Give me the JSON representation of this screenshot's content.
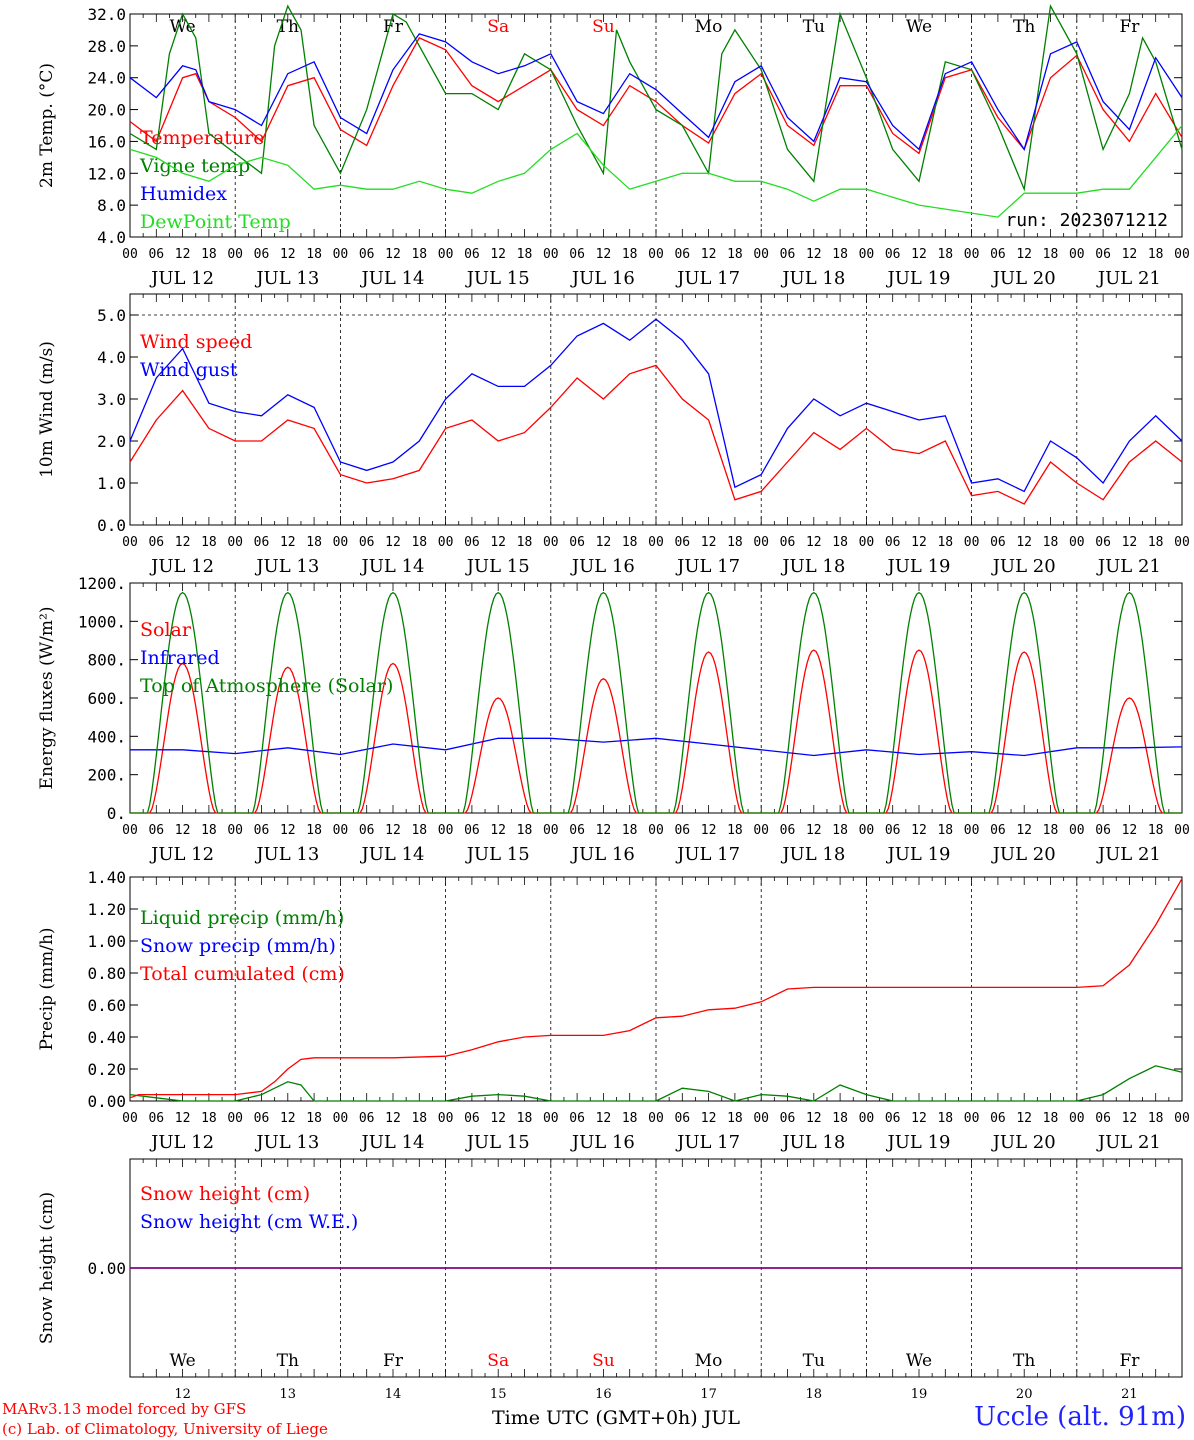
{
  "footer": {
    "credit_line1": "MARv3.13 model forced by GFS",
    "credit_line2": "(c) Lab. of Climatology, University of Liege",
    "station": "Uccle (alt. 91m)",
    "x_axis_title": "Time UTC (GMT+0h) JUL"
  },
  "run_label": "run: 2023071212",
  "days": [
    {
      "date": "JUL 12",
      "num": "12",
      "dow": "We",
      "weekend": false
    },
    {
      "date": "JUL 13",
      "num": "13",
      "dow": "Th",
      "weekend": false
    },
    {
      "date": "JUL 14",
      "num": "14",
      "dow": "Fr",
      "weekend": false
    },
    {
      "date": "JUL 15",
      "num": "15",
      "dow": "Sa",
      "weekend": true
    },
    {
      "date": "JUL 16",
      "num": "16",
      "dow": "Su",
      "weekend": true
    },
    {
      "date": "JUL 17",
      "num": "17",
      "dow": "Mo",
      "weekend": false
    },
    {
      "date": "JUL 18",
      "num": "18",
      "dow": "Tu",
      "weekend": false
    },
    {
      "date": "JUL 19",
      "num": "19",
      "dow": "We",
      "weekend": false
    },
    {
      "date": "JUL 20",
      "num": "20",
      "dow": "Th",
      "weekend": false
    },
    {
      "date": "JUL 21",
      "num": "21",
      "dow": "Fr",
      "weekend": false
    }
  ],
  "hour_labels": [
    "00",
    "06",
    "12",
    "18"
  ],
  "last_hour_label": "00",
  "colors": {
    "red": "#ff0000",
    "blue": "#0000ff",
    "green": "#008000",
    "lightgreen": "#22dd22",
    "purple": "#800080"
  },
  "chart_data": [
    {
      "type": "line",
      "id": "temp",
      "ylabel": "2m Temp. (°C)",
      "ylim": [
        4,
        32
      ],
      "yticks": [
        "4.0",
        "8.0",
        "12.0",
        "16.0",
        "20.0",
        "24.0",
        "28.0",
        "32.0"
      ],
      "x_unit": "hours since JUL 12 00 UTC",
      "xlim": [
        0,
        240
      ],
      "series": [
        {
          "name": "Temperature",
          "color": "#ff0000",
          "x": [
            0,
            6,
            12,
            15,
            18,
            24,
            30,
            36,
            42,
            48,
            54,
            60,
            66,
            72,
            78,
            84,
            90,
            96,
            102,
            108,
            114,
            120,
            126,
            132,
            138,
            144,
            150,
            156,
            162,
            168,
            174,
            180,
            186,
            192,
            198,
            204,
            210,
            216,
            222,
            228,
            234,
            240
          ],
          "y": [
            18.5,
            16,
            24,
            24.5,
            21,
            19,
            16,
            23,
            24,
            17.5,
            15.5,
            23,
            29,
            27.5,
            23,
            21,
            23,
            25,
            20,
            18,
            23,
            21,
            18,
            15.8,
            22,
            24.5,
            18,
            15.5,
            23,
            23,
            17,
            14.5,
            24,
            25,
            19,
            15,
            24,
            26.8,
            20,
            16,
            22,
            16.5
          ]
        },
        {
          "name": "Vigne temp",
          "color": "#008000",
          "x": [
            0,
            6,
            9,
            12,
            15,
            18,
            24,
            30,
            33,
            36,
            39,
            42,
            48,
            54,
            60,
            63,
            66,
            72,
            78,
            84,
            90,
            96,
            102,
            108,
            111,
            114,
            120,
            126,
            132,
            135,
            138,
            144,
            150,
            156,
            162,
            168,
            174,
            180,
            186,
            192,
            198,
            204,
            210,
            216,
            222,
            228,
            231,
            234,
            240
          ],
          "y": [
            17,
            15,
            27,
            32,
            29,
            17,
            14.5,
            12,
            28,
            33,
            30,
            18,
            12,
            20,
            32,
            31,
            28,
            22,
            22,
            20,
            27,
            25,
            18,
            12,
            30,
            26,
            20,
            18,
            12,
            27,
            30,
            25,
            15,
            11,
            32,
            24,
            15,
            11,
            26,
            25,
            18,
            10,
            33,
            27,
            15,
            22,
            29,
            26,
            15
          ]
        },
        {
          "name": "Humidex",
          "color": "#0000ff",
          "x": [
            0,
            6,
            12,
            15,
            18,
            24,
            30,
            36,
            42,
            48,
            54,
            60,
            66,
            72,
            78,
            84,
            90,
            96,
            102,
            108,
            114,
            120,
            126,
            132,
            138,
            144,
            150,
            156,
            162,
            168,
            174,
            180,
            186,
            192,
            198,
            204,
            210,
            216,
            222,
            228,
            234,
            240
          ],
          "y": [
            24,
            21.5,
            25.5,
            25,
            21,
            20,
            18,
            24.5,
            26,
            19,
            17,
            25,
            29.5,
            28.5,
            26,
            24.5,
            25.5,
            27,
            21,
            19.5,
            24.5,
            22.5,
            19.5,
            16.5,
            23.5,
            25.5,
            19,
            16,
            24,
            23.5,
            18,
            15,
            24.5,
            26,
            20,
            15,
            27,
            28.5,
            21,
            17.5,
            26.5,
            21.5
          ]
        },
        {
          "name": "DewPoint Temp",
          "color": "#22dd22",
          "x": [
            0,
            6,
            12,
            18,
            24,
            30,
            36,
            42,
            48,
            54,
            60,
            66,
            72,
            78,
            84,
            90,
            96,
            102,
            108,
            114,
            120,
            126,
            132,
            138,
            144,
            150,
            156,
            162,
            168,
            174,
            180,
            186,
            192,
            198,
            204,
            210,
            216,
            222,
            228,
            234,
            240
          ],
          "y": [
            15,
            14,
            12,
            11,
            13,
            14,
            13,
            10,
            10.5,
            10,
            10,
            11,
            10,
            9.5,
            11,
            12,
            15,
            17,
            13,
            10,
            11,
            12,
            12,
            11,
            11,
            10,
            8.5,
            10,
            10,
            9,
            8,
            7.5,
            7,
            6.5,
            9.5,
            9.5,
            9.5,
            10,
            10,
            14,
            18
          ]
        }
      ],
      "day_labels_on_top": true
    },
    {
      "type": "line",
      "id": "wind",
      "ylabel": "10m Wind (m/s)",
      "ylim": [
        0,
        5.5
      ],
      "yticks": [
        "0.0",
        "1.0",
        "2.0",
        "3.0",
        "4.0",
        "5.0"
      ],
      "dashed_ref": 5.0,
      "xlim": [
        0,
        240
      ],
      "series": [
        {
          "name": "Wind speed",
          "color": "#ff0000",
          "x": [
            0,
            6,
            12,
            18,
            24,
            30,
            36,
            42,
            48,
            54,
            60,
            66,
            72,
            78,
            84,
            90,
            96,
            102,
            108,
            114,
            120,
            126,
            132,
            138,
            144,
            150,
            156,
            162,
            168,
            174,
            180,
            186,
            192,
            198,
            204,
            210,
            216,
            222,
            228,
            234,
            240
          ],
          "y": [
            1.5,
            2.5,
            3.2,
            2.3,
            2.0,
            2.0,
            2.5,
            2.3,
            1.2,
            1.0,
            1.1,
            1.3,
            2.3,
            2.5,
            2.0,
            2.2,
            2.8,
            3.5,
            3.0,
            3.6,
            3.8,
            3.0,
            2.5,
            0.6,
            0.8,
            1.5,
            2.2,
            1.8,
            2.3,
            1.8,
            1.7,
            2.0,
            0.7,
            0.8,
            0.5,
            1.5,
            1.0,
            0.6,
            1.5,
            2.0,
            1.5
          ]
        },
        {
          "name": "Wind gust",
          "color": "#0000ff",
          "x": [
            0,
            6,
            12,
            18,
            24,
            30,
            36,
            42,
            48,
            54,
            60,
            66,
            72,
            78,
            84,
            90,
            96,
            102,
            108,
            114,
            120,
            126,
            132,
            138,
            144,
            150,
            156,
            162,
            168,
            174,
            180,
            186,
            192,
            198,
            204,
            210,
            216,
            222,
            228,
            234,
            240
          ],
          "y": [
            2.0,
            3.5,
            4.2,
            2.9,
            2.7,
            2.6,
            3.1,
            2.8,
            1.5,
            1.3,
            1.5,
            2.0,
            3.0,
            3.6,
            3.3,
            3.3,
            3.8,
            4.5,
            4.8,
            4.4,
            4.9,
            4.4,
            3.6,
            0.9,
            1.2,
            2.3,
            3.0,
            2.6,
            2.9,
            2.7,
            2.5,
            2.6,
            1.0,
            1.1,
            0.8,
            2.0,
            1.6,
            1.0,
            2.0,
            2.6,
            2.0
          ]
        }
      ],
      "day_labels_on_top": false
    },
    {
      "type": "line",
      "id": "flux",
      "ylabel": "Energy fluxes (W/m²)",
      "ylim": [
        0,
        1200
      ],
      "yticks": [
        "0.",
        "200.",
        "400.",
        "600.",
        "800.",
        "1000.",
        "1200."
      ],
      "xlim": [
        0,
        240
      ],
      "series": [
        {
          "name": "Solar",
          "color": "#ff0000",
          "diurnal": true,
          "peaks": [
            780,
            760,
            780,
            600,
            700,
            840,
            850,
            850,
            840,
            600
          ]
        },
        {
          "name": "Infrared",
          "color": "#0000ff",
          "x": [
            0,
            12,
            24,
            36,
            48,
            60,
            72,
            84,
            96,
            108,
            120,
            132,
            144,
            156,
            168,
            180,
            192,
            204,
            216,
            228,
            240
          ],
          "y": [
            330,
            330,
            310,
            340,
            305,
            360,
            330,
            390,
            390,
            370,
            390,
            360,
            330,
            300,
            330,
            305,
            320,
            300,
            340,
            340,
            345
          ]
        },
        {
          "name": "Top of Atmosphere (Solar)",
          "color": "#008000",
          "diurnal": true,
          "peaks": [
            1150,
            1150,
            1150,
            1150,
            1150,
            1150,
            1150,
            1150,
            1150,
            1150
          ]
        }
      ],
      "day_labels_on_top": false
    },
    {
      "type": "line",
      "id": "precip",
      "ylabel": "Precip (mm/h)",
      "ylim": [
        0,
        1.4
      ],
      "yticks": [
        "0.00",
        "0.20",
        "0.40",
        "0.60",
        "0.80",
        "1.00",
        "1.20",
        "1.40"
      ],
      "xlim": [
        0,
        240
      ],
      "series": [
        {
          "name": "Liquid precip (mm/h)",
          "color": "#008000",
          "x": [
            0,
            6,
            12,
            24,
            30,
            33,
            36,
            39,
            42,
            48,
            72,
            78,
            84,
            90,
            96,
            120,
            126,
            132,
            138,
            144,
            150,
            156,
            162,
            168,
            174,
            216,
            222,
            228,
            234,
            240
          ],
          "y": [
            0.04,
            0.02,
            0.0,
            0.0,
            0.04,
            0.08,
            0.12,
            0.1,
            0.0,
            0.0,
            0.0,
            0.03,
            0.04,
            0.03,
            0.0,
            0.0,
            0.08,
            0.06,
            0.0,
            0.04,
            0.03,
            0.0,
            0.1,
            0.04,
            0.0,
            0.0,
            0.04,
            0.14,
            0.22,
            0.18
          ]
        },
        {
          "name": "Snow precip (mm/h)",
          "color": "#0000ff",
          "x": [],
          "y": []
        },
        {
          "name": "Total cumulated (cm)",
          "color": "#ff0000",
          "x": [
            0,
            2,
            6,
            12,
            24,
            30,
            33,
            36,
            39,
            42,
            48,
            60,
            72,
            78,
            84,
            90,
            96,
            108,
            114,
            120,
            126,
            132,
            138,
            144,
            150,
            156,
            162,
            168,
            174,
            210,
            216,
            222,
            228,
            234,
            240
          ],
          "y": [
            0.02,
            0.04,
            0.04,
            0.04,
            0.04,
            0.06,
            0.12,
            0.2,
            0.26,
            0.27,
            0.27,
            0.27,
            0.28,
            0.32,
            0.37,
            0.4,
            0.41,
            0.41,
            0.44,
            0.52,
            0.53,
            0.57,
            0.58,
            0.62,
            0.7,
            0.71,
            0.71,
            0.71,
            0.71,
            0.71,
            0.71,
            0.72,
            0.85,
            1.1,
            1.39
          ]
        }
      ],
      "day_labels_on_top": false
    },
    {
      "type": "line",
      "id": "snow",
      "ylabel": "Snow height (cm)",
      "ylim": [
        -1,
        1
      ],
      "yticks": [
        "0.00"
      ],
      "xlim": [
        0,
        240
      ],
      "series": [
        {
          "name": "Snow height (cm)",
          "color": "#ff0000",
          "x": [
            0,
            240
          ],
          "y": [
            0,
            0
          ]
        },
        {
          "name": "Snow height (cm W.E.)",
          "color": "#0000ff",
          "x": [
            0,
            240
          ],
          "y": [
            0,
            0
          ]
        }
      ],
      "day_labels_on_top": false
    }
  ]
}
